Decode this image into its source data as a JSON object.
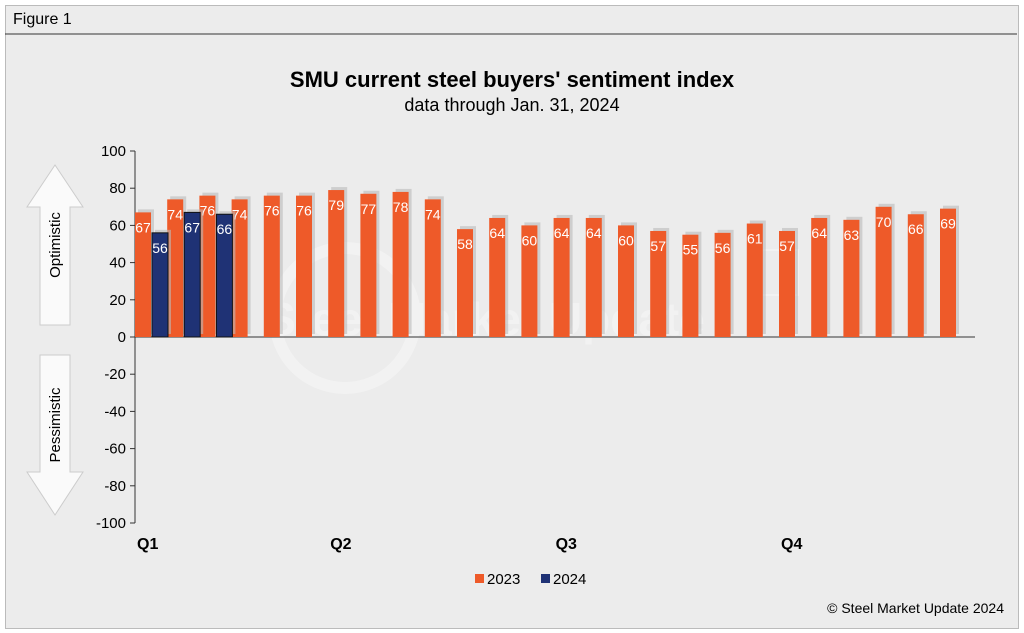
{
  "figure_label": "Figure 1",
  "copyright": "© Steel Market Update 2024",
  "watermark": "Steel Market Update",
  "watermark_logo": "CRU",
  "arrows": {
    "up": "Optimistic",
    "down": "Pessimistic"
  },
  "colors": {
    "s2023": "#ee5a29",
    "s2024": "#1f3275"
  },
  "chart_data": {
    "type": "bar",
    "title": "SMU current steel buyers' sentiment index",
    "subtitle": "data through Jan. 31, 2024",
    "xlabel": "",
    "ylabel": "",
    "ylim": [
      -100,
      100
    ],
    "yticks": [
      100,
      80,
      60,
      40,
      20,
      0,
      -20,
      -40,
      -60,
      -80,
      -100
    ],
    "quarter_labels": [
      {
        "label": "Q1",
        "index": 0
      },
      {
        "label": "Q2",
        "index": 6
      },
      {
        "label": "Q3",
        "index": 13
      },
      {
        "label": "Q4",
        "index": 20
      }
    ],
    "legend": {
      "position": "bottom",
      "entries": [
        "2023",
        "2024"
      ]
    },
    "series": [
      {
        "name": "2023",
        "values": [
          67,
          74,
          76,
          74,
          76,
          76,
          79,
          77,
          78,
          74,
          58,
          64,
          60,
          64,
          64,
          60,
          57,
          55,
          56,
          61,
          57,
          64,
          63,
          70,
          66,
          69
        ]
      },
      {
        "name": "2024",
        "values": [
          56,
          67,
          66
        ]
      }
    ]
  }
}
